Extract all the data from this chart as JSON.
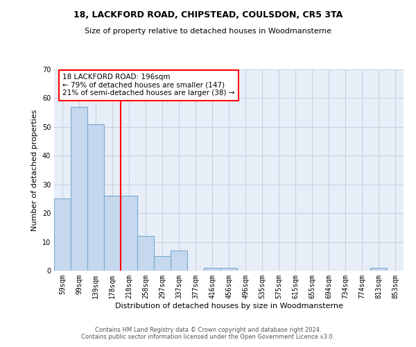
{
  "title1": "18, LACKFORD ROAD, CHIPSTEAD, COULSDON, CR5 3TA",
  "title2": "Size of property relative to detached houses in Woodmansterne",
  "xlabel": "Distribution of detached houses by size in Woodmansterne",
  "ylabel": "Number of detached properties",
  "categories": [
    "59sqm",
    "99sqm",
    "139sqm",
    "178sqm",
    "218sqm",
    "258sqm",
    "297sqm",
    "337sqm",
    "377sqm",
    "416sqm",
    "456sqm",
    "496sqm",
    "535sqm",
    "575sqm",
    "615sqm",
    "655sqm",
    "694sqm",
    "734sqm",
    "774sqm",
    "813sqm",
    "853sqm"
  ],
  "values": [
    25,
    57,
    51,
    26,
    26,
    12,
    5,
    7,
    0,
    1,
    1,
    0,
    0,
    0,
    0,
    0,
    0,
    0,
    0,
    1,
    0
  ],
  "bar_color": "#c5d8ee",
  "bar_edge_color": "#7aaad0",
  "red_line_x": 3.5,
  "annotation_line1": "18 LACKFORD ROAD: 196sqm",
  "annotation_line2": "← 79% of detached houses are smaller (147)",
  "annotation_line3": "21% of semi-detached houses are larger (38) →",
  "annotation_box_color": "white",
  "annotation_box_edge": "red",
  "ylim": [
    0,
    70
  ],
  "yticks": [
    0,
    10,
    20,
    30,
    40,
    50,
    60,
    70
  ],
  "grid_color": "#c8d0dc",
  "bg_color": "#e8eef8",
  "footer1": "Contains HM Land Registry data © Crown copyright and database right 2024.",
  "footer2": "Contains public sector information licensed under the Open Government Licence v3.0."
}
